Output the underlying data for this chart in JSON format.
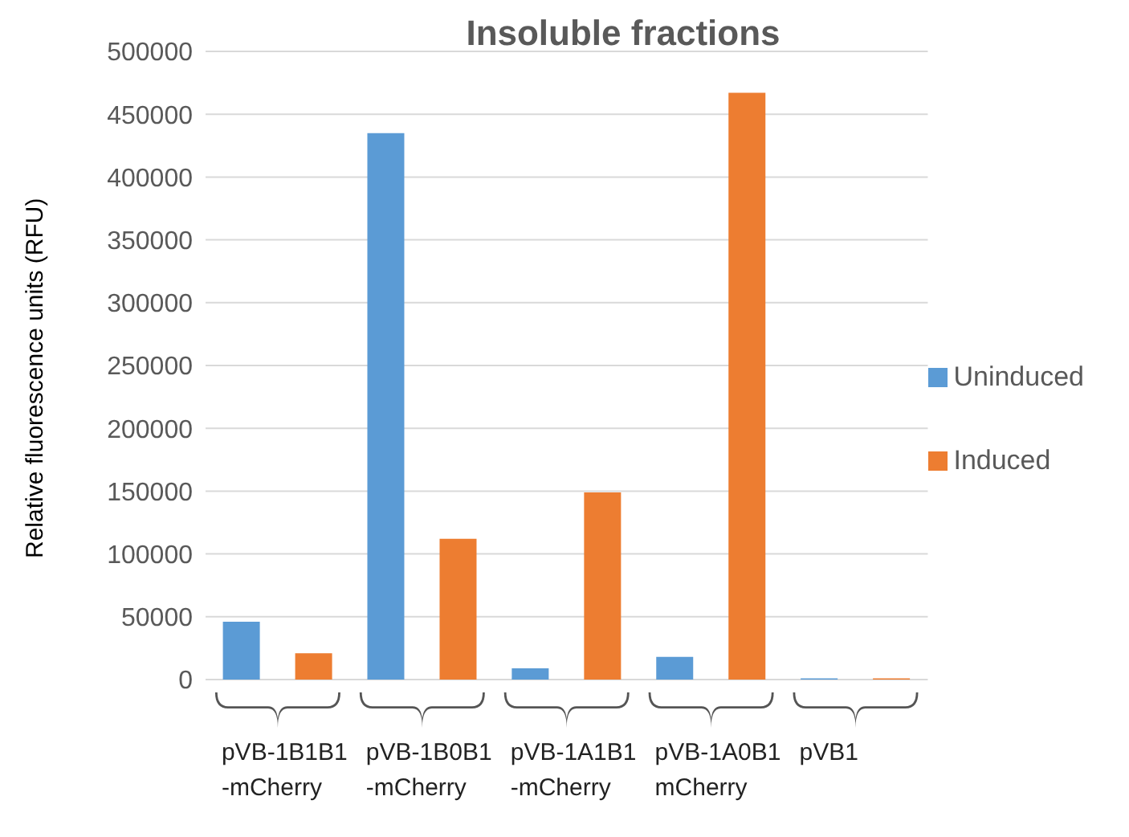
{
  "chart_data": {
    "type": "bar",
    "title": "Insoluble fractions",
    "ylabel": "Relative fluorescence units (RFU)",
    "categories": [
      "pVB-1B1B1\n-mCherry",
      "pVB-1B0B1\n-mCherry",
      "pVB-1A1B1\n-mCherry",
      "pVB-1A0B1\nmCherry",
      "pVB1"
    ],
    "series": [
      {
        "name": "Uninduced",
        "color": "#5b9bd5",
        "values": [
          46000,
          435000,
          9000,
          18000,
          1000
        ]
      },
      {
        "name": "Induced",
        "color": "#ed7d31",
        "values": [
          21000,
          112000,
          149000,
          467000,
          1000
        ]
      }
    ],
    "ylim": [
      0,
      500000
    ],
    "yticks": [
      0,
      50000,
      100000,
      150000,
      200000,
      250000,
      300000,
      350000,
      400000,
      450000,
      500000
    ],
    "grid": "y",
    "legend": "right"
  }
}
